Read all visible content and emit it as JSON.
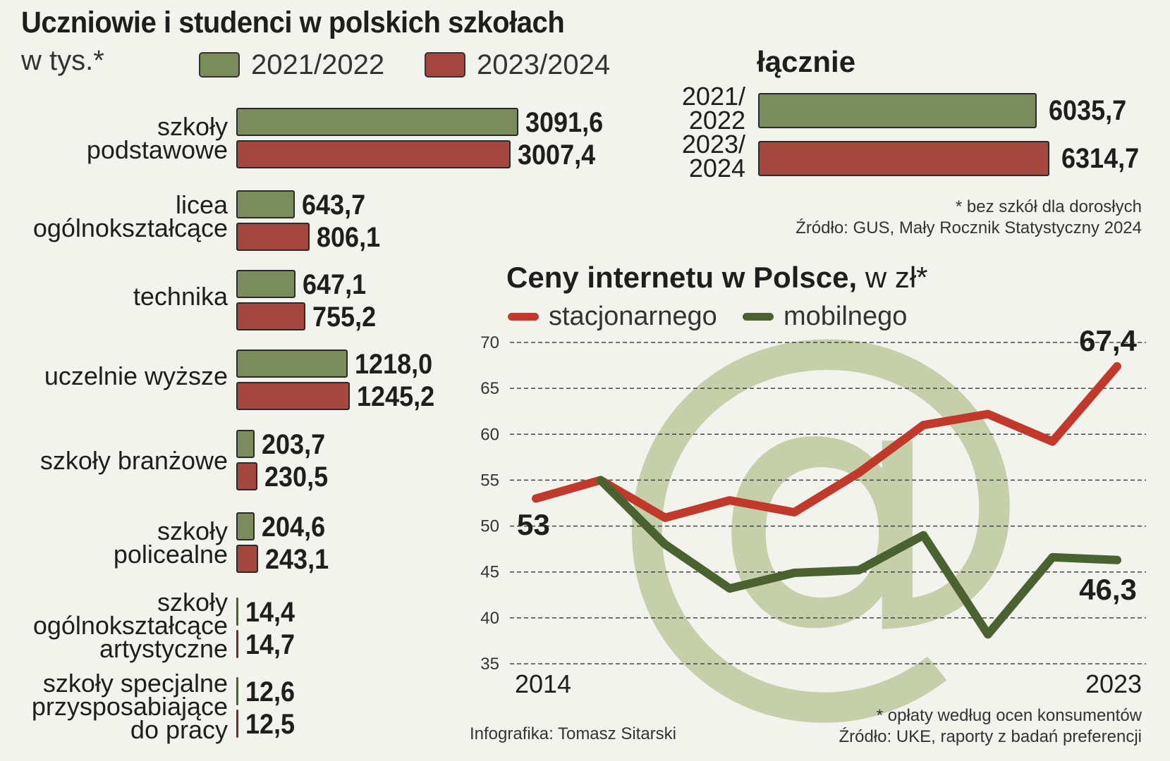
{
  "title": "Uczniowie i studenci w polskich szkołach",
  "unit": "w tys.*",
  "legend": [
    {
      "label": "2021/2022",
      "color": "#7a8c5c"
    },
    {
      "label": "2023/2024",
      "color": "#a4473f"
    }
  ],
  "chart_data": [
    {
      "type": "bar",
      "title": "Uczniowie i studenci w polskich szkołach",
      "unit": "w tys.*",
      "categories": [
        "szkoły podstawowe",
        "licea ogólnokształcące",
        "technika",
        "uczelnie wyższe",
        "szkoły branżowe",
        "szkoły policealne",
        "szkoły ogólnokształcące artystyczne",
        "szkoły specjalne przysposabiające do pracy"
      ],
      "category_lines": [
        [
          "szkoły",
          "podstawowe"
        ],
        [
          "licea",
          "ogólnokształcące"
        ],
        [
          "technika"
        ],
        [
          "uczelnie wyższe"
        ],
        [
          "szkoły branżowe"
        ],
        [
          "szkoły",
          "policealne"
        ],
        [
          "szkoły",
          "ogólnokształcące",
          "artystyczne"
        ],
        [
          "szkoły specjalne",
          "przysposabiające",
          "do pracy"
        ]
      ],
      "series": [
        {
          "name": "2021/2022",
          "values": [
            3091.6,
            643.7,
            647.1,
            1218.0,
            203.7,
            204.6,
            14.4,
            12.6
          ],
          "labels": [
            "3091,6",
            "643,7",
            "647,1",
            "1218,0",
            "203,7",
            "204,6",
            "14,4",
            "12,6"
          ]
        },
        {
          "name": "2023/2024",
          "values": [
            3007.4,
            806.1,
            755.2,
            1245.2,
            230.5,
            243.1,
            14.7,
            12.5
          ],
          "labels": [
            "3007,4",
            "806,1",
            "755,2",
            "1245,2",
            "230,5",
            "243,1",
            "14,7",
            "12,5"
          ]
        }
      ]
    },
    {
      "type": "bar",
      "title": "łącznie",
      "categories": [
        "2021/2022",
        "2023/2024"
      ],
      "category_lines": [
        [
          "2021/",
          "2022"
        ],
        [
          "2023/",
          "2024"
        ]
      ],
      "values": [
        6035.7,
        6314.7
      ],
      "labels": [
        "6035,7",
        "6314,7"
      ]
    },
    {
      "type": "line",
      "title": "Ceny internetu w Polsce,",
      "title_suffix": "w zł*",
      "x": [
        2014,
        2015,
        2016,
        2017,
        2018,
        2019,
        2020,
        2021,
        2022,
        2023
      ],
      "x_tick_labels": [
        "2014",
        "2023"
      ],
      "ylim": [
        35,
        70
      ],
      "yticks": [
        35,
        40,
        45,
        50,
        55,
        60,
        65,
        70
      ],
      "grid": true,
      "series": [
        {
          "name": "stacjonarnego",
          "color": "#c0392b",
          "values": [
            53.0,
            55.0,
            50.9,
            52.8,
            51.5,
            55.8,
            61.0,
            62.2,
            59.2,
            67.4
          ]
        },
        {
          "name": "mobilnego",
          "color": "#4a6130",
          "values": [
            null,
            55.0,
            48.0,
            43.2,
            44.9,
            45.2,
            49.0,
            38.2,
            46.6,
            46.3
          ]
        }
      ],
      "annotations": [
        "53",
        "67,4",
        "46,3"
      ]
    }
  ],
  "notes": {
    "top1": "* bez szkół dla dorosłych",
    "top2": "Źródło: GUS, Mały Rocznik Statystyczny 2024",
    "bottom1": "* opłaty według ocen konsumentów",
    "bottom2": "Źródło: UKE, raporty z badań preferencji"
  },
  "credit": "Infografika: Tomasz Sitarski",
  "colors": {
    "green_bar": "#7a8c5c",
    "red_bar": "#a4473f",
    "line_red": "#c0392b",
    "line_green": "#4a6130",
    "watermark": "#c5d0ab"
  }
}
